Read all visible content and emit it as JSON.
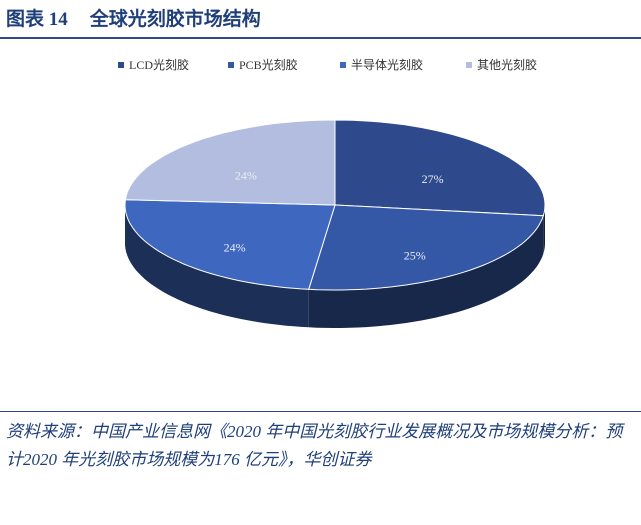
{
  "header": {
    "label": "图表 14",
    "title": "全球光刻胶市场结构"
  },
  "chart_data": {
    "type": "pie",
    "categories": [
      "LCD光刻胶",
      "PCB光刻胶",
      "半导体光刻胶",
      "其他光刻胶"
    ],
    "values": [
      27,
      25,
      24,
      24
    ],
    "value_labels": [
      "27%",
      "25%",
      "24%",
      "24%"
    ],
    "colors": [
      "#2e4a8c",
      "#3558a6",
      "#3e68bf",
      "#b3bde0"
    ],
    "legend": "top"
  },
  "source": "资料来源：中国产业信息网《2020 年中国光刻胶行业发展概况及市场规模分析：预计2020 年光刻胶市场规模为176 亿元》，华创证券"
}
